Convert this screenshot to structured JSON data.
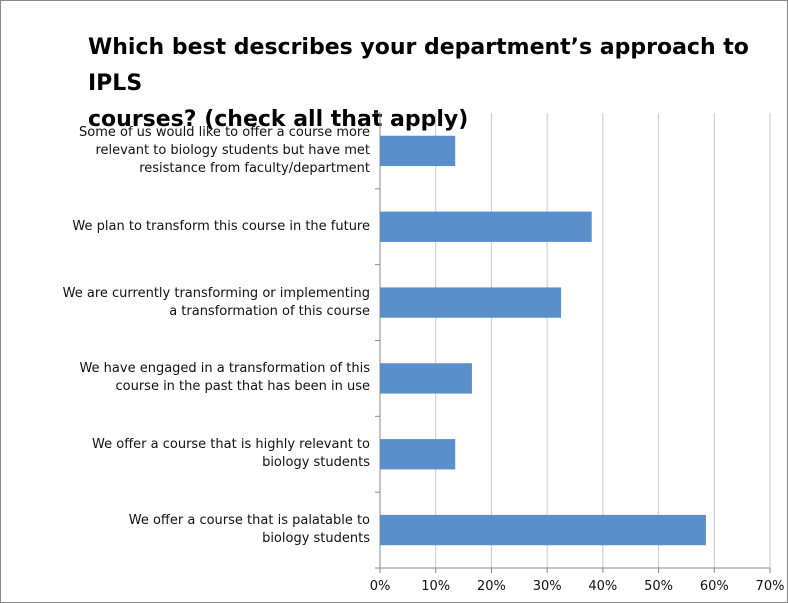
{
  "chart_data": {
    "type": "barh",
    "title": "Which best describes your department’s approach to IPLS\ncourses?  (check all that apply)",
    "categories": [
      "Some of us would like to offer a course  more\nrelevant to biology students but have met\nresistance from faculty/department",
      "We plan to transform this course in the future",
      "We are currently transforming or implementing\na transformation of this course",
      "We have engaged in a transformation of this\ncourse in the past that has been in use",
      "We offer a course that is highly relevant to\nbiology students",
      "We offer a course that is palatable  to\nbiology students"
    ],
    "values": [
      13.5,
      38,
      32.5,
      16.5,
      13.5,
      58.5
    ],
    "color": "#5b8fcc",
    "xlim": [
      0,
      70
    ],
    "xticks": [
      {
        "value": 0,
        "label": "0%"
      },
      {
        "value": 10,
        "label": "10%"
      },
      {
        "value": 20,
        "label": "20%"
      },
      {
        "value": 30,
        "label": "30%"
      },
      {
        "value": 40,
        "label": "40%"
      },
      {
        "value": 50,
        "label": "50%"
      },
      {
        "value": 60,
        "label": "60%"
      },
      {
        "value": 70,
        "label": "70%"
      }
    ],
    "grid": true
  }
}
